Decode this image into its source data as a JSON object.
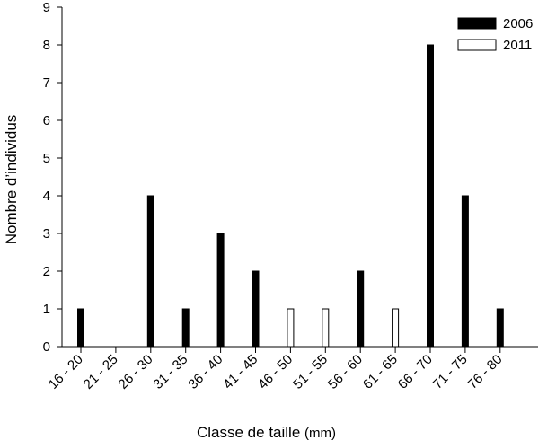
{
  "chart_data": {
    "type": "bar",
    "categories": [
      "16 - 20",
      "21 - 25",
      "26 - 30",
      "31 - 35",
      "36 - 40",
      "41 - 45",
      "46 - 50",
      "51 - 55",
      "56 - 60",
      "61 - 65",
      "66 - 70",
      "71 - 75",
      "76 - 80"
    ],
    "series": [
      {
        "name": "2006",
        "values": [
          1,
          0,
          4,
          1,
          3,
          2,
          0,
          0,
          2,
          0,
          8,
          4,
          1
        ],
        "color": "#000000",
        "fill": "#000000"
      },
      {
        "name": "2011",
        "values": [
          0,
          0,
          0,
          0,
          0,
          0,
          1,
          1,
          0,
          1,
          0,
          0,
          0
        ],
        "color": "#000000",
        "fill": "#ffffff"
      }
    ],
    "ylabel": "Nombre d’individus",
    "xlabel": "Classe de taille",
    "xlabel_unit": "(mm)",
    "ylim": [
      0,
      9
    ],
    "yticks": [
      0,
      1,
      2,
      3,
      4,
      5,
      6,
      7,
      8,
      9
    ],
    "grid": false,
    "legend": "top-right"
  }
}
